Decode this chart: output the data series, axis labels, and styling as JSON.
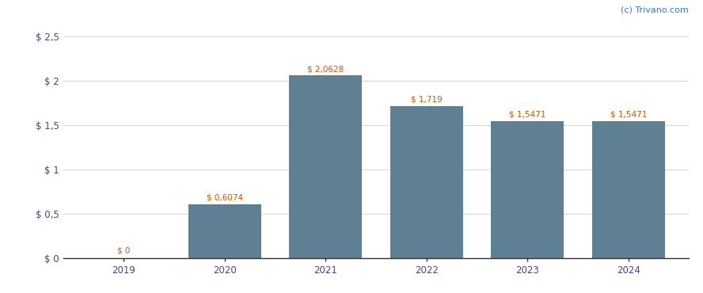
{
  "categories": [
    "2019",
    "2020",
    "2021",
    "2022",
    "2023",
    "2024"
  ],
  "values": [
    0.0,
    0.6074,
    2.0628,
    1.719,
    1.5471,
    1.5471
  ],
  "labels": [
    "$ 0",
    "$ 0,6074",
    "$ 2,0628",
    "$ 1,719",
    "$ 1,5471",
    "$ 1,5471"
  ],
  "bar_color": "#5f7f93",
  "yticks": [
    0.0,
    0.5,
    1.0,
    1.5,
    2.0,
    2.5
  ],
  "ytick_labels": [
    "$ 0",
    "$ 0,5",
    "$ 1",
    "$ 1,5",
    "$ 2",
    "$ 2,5"
  ],
  "ylim": [
    0,
    2.65
  ],
  "watermark": "(c) Trivano.com",
  "watermark_color": "#3377cc",
  "background_color": "#ffffff",
  "grid_color": "#d8d8d8",
  "label_color": "#cc5500",
  "axis_color": "#333333",
  "tick_label_color": "#444488",
  "bar_width": 0.72,
  "label_fontsize": 7.5,
  "tick_fontsize": 8.5
}
